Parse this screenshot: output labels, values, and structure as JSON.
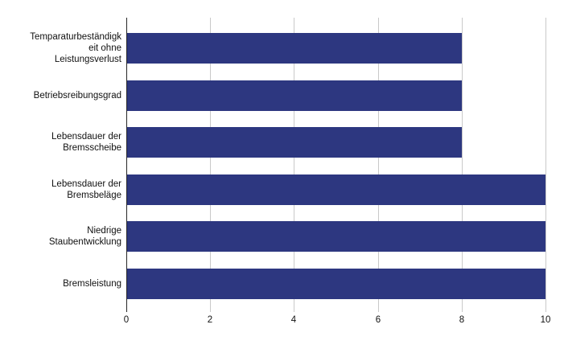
{
  "chart_data": {
    "type": "bar",
    "orientation": "horizontal",
    "title": "",
    "xlabel": "",
    "ylabel": "",
    "xlim": [
      0,
      10
    ],
    "x_ticks": [
      0,
      2,
      4,
      6,
      8,
      10
    ],
    "grid": "vertical-only",
    "legend": "none",
    "categories": [
      {
        "label": "Temparaturbeständigkeit ohne Leistungsverlust",
        "lines": [
          "Temparaturbeständigk",
          "eit ohne",
          "Leistungsverlust"
        ]
      },
      {
        "label": "Betriebsreibungsgrad",
        "lines": [
          "Betriebsreibungsgrad"
        ]
      },
      {
        "label": "Lebensdauer der Bremsscheibe",
        "lines": [
          "Lebensdauer der",
          "Bremsscheibe"
        ]
      },
      {
        "label": "Lebensdauer der Bremsbeläge",
        "lines": [
          "Lebensdauer der",
          "Bremsbeläge"
        ]
      },
      {
        "label": "Niedrige Staubentwicklung",
        "lines": [
          "Niedrige",
          "Staubentwicklung"
        ]
      },
      {
        "label": "Bremsleistung",
        "lines": [
          "Bremsleistung"
        ]
      }
    ],
    "values": [
      8,
      8,
      8,
      10,
      10,
      10
    ],
    "colors": {
      "bar": "#2d3780",
      "gridline": "#c9c9c9",
      "axis": "#262626",
      "text": "#111111",
      "background": "#ffffff"
    }
  }
}
